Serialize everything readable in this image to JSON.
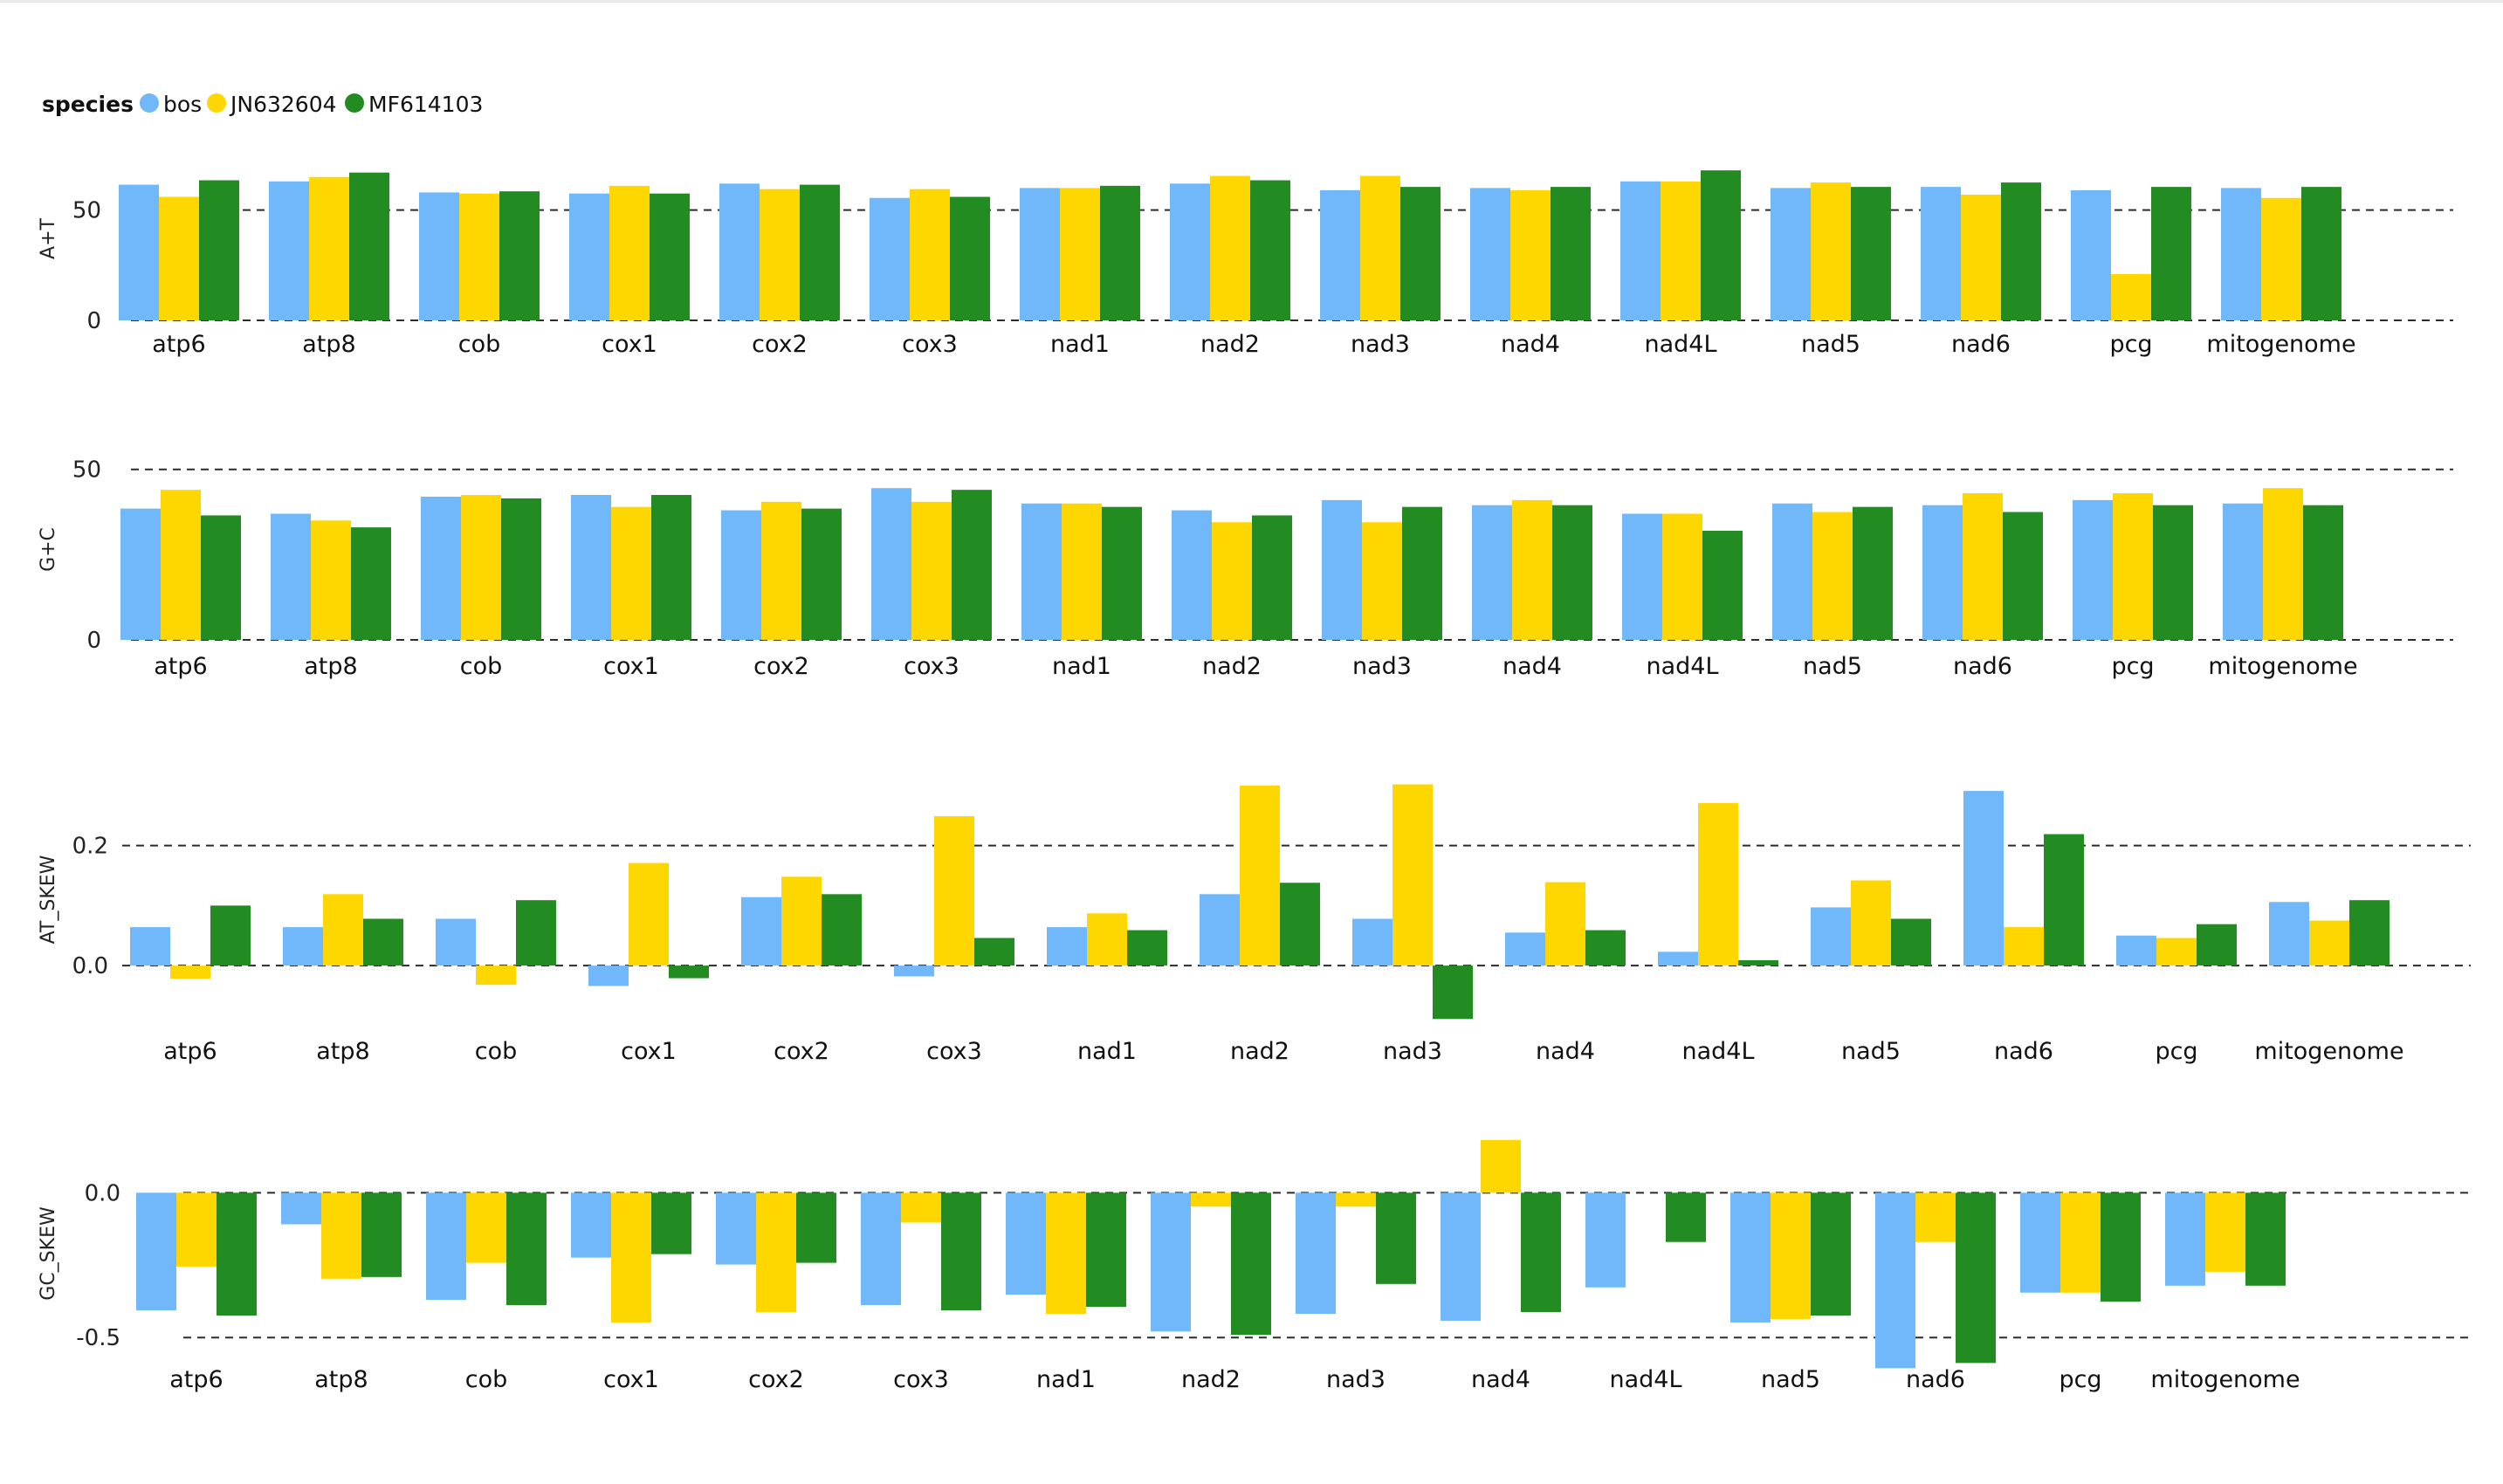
{
  "legend": {
    "title": "species",
    "items": [
      {
        "name": "bos",
        "color": "#70b8fa"
      },
      {
        "name": "JN632604",
        "color": "#ffd700"
      },
      {
        "name": "MF614103",
        "color": "#228b22"
      }
    ]
  },
  "chart_data": [
    {
      "type": "bar",
      "ylabel": "A+T",
      "categories": [
        "atp6",
        "atp8",
        "cob",
        "cox1",
        "cox2",
        "cox3",
        "nad1",
        "nad2",
        "nad3",
        "nad4",
        "nad4L",
        "nad5",
        "nad6",
        "pcg",
        "mitogenome"
      ],
      "yticks": [
        0,
        50
      ],
      "ytick_labels": [
        "0",
        "50"
      ],
      "ylim": [
        0,
        74
      ],
      "grid": "dashed at ticks",
      "series": [
        {
          "name": "bos",
          "values": [
            61.5,
            63.0,
            58.0,
            57.5,
            62.0,
            55.5,
            60.0,
            62.0,
            59.0,
            60.0,
            63.0,
            60.0,
            60.5,
            59.0,
            60.0
          ]
        },
        {
          "name": "JN632604",
          "values": [
            56.0,
            65.0,
            57.5,
            61.0,
            59.5,
            59.5,
            60.0,
            65.5,
            65.5,
            59.0,
            63.0,
            62.5,
            57.0,
            21.0,
            55.5
          ]
        },
        {
          "name": "MF614103",
          "values": [
            63.5,
            67.0,
            58.5,
            57.5,
            61.5,
            56.0,
            61.0,
            63.5,
            60.5,
            60.5,
            68.0,
            60.5,
            62.5,
            60.5,
            60.5
          ]
        }
      ]
    },
    {
      "type": "bar",
      "ylabel": "G+C",
      "categories": [
        "atp6",
        "atp8",
        "cob",
        "cox1",
        "cox2",
        "cox3",
        "nad1",
        "nad2",
        "nad3",
        "nad4",
        "nad4L",
        "nad5",
        "nad6",
        "pcg",
        "mitogenome"
      ],
      "yticks": [
        0,
        50
      ],
      "ytick_labels": [
        "0",
        "50"
      ],
      "ylim": [
        0,
        53
      ],
      "grid": "dashed at ticks",
      "series": [
        {
          "name": "bos",
          "values": [
            38.5,
            37.0,
            42.0,
            42.5,
            38.0,
            44.5,
            40.0,
            38.0,
            41.0,
            39.5,
            37.0,
            40.0,
            39.5,
            41.0,
            40.0
          ]
        },
        {
          "name": "JN632604",
          "values": [
            44.0,
            35.0,
            42.5,
            39.0,
            40.5,
            40.5,
            40.0,
            34.5,
            34.5,
            41.0,
            37.0,
            37.5,
            43.0,
            43.0,
            44.5
          ]
        },
        {
          "name": "MF614103",
          "values": [
            36.5,
            33.0,
            41.5,
            42.5,
            38.5,
            44.0,
            39.0,
            36.5,
            39.0,
            39.5,
            32.0,
            39.0,
            37.5,
            39.5,
            39.5
          ]
        }
      ]
    },
    {
      "type": "bar",
      "ylabel": "AT_SKEW",
      "categories": [
        "atp6",
        "atp8",
        "cob",
        "cox1",
        "cox2",
        "cox3",
        "nad1",
        "nad2",
        "nad3",
        "nad4",
        "nad4L",
        "nad5",
        "nad6",
        "pcg",
        "mitogenome"
      ],
      "yticks": [
        0.0,
        0.2
      ],
      "ytick_labels": [
        "0.0",
        "0.2"
      ],
      "ylim": [
        -0.09,
        0.31
      ],
      "grid": "dashed at ticks",
      "series": [
        {
          "name": "bos",
          "values": [
            0.064,
            0.064,
            0.078,
            -0.034,
            0.114,
            -0.018,
            0.064,
            0.119,
            0.078,
            0.055,
            0.023,
            0.097,
            0.291,
            0.05,
            0.106
          ]
        },
        {
          "name": "JN632604",
          "values": [
            -0.022,
            0.119,
            -0.032,
            0.171,
            0.148,
            0.249,
            0.087,
            0.3,
            0.302,
            0.139,
            0.271,
            0.142,
            0.064,
            0.046,
            0.075
          ]
        },
        {
          "name": "MF614103",
          "values": [
            0.1,
            0.078,
            0.109,
            -0.021,
            0.119,
            0.046,
            0.059,
            0.138,
            -0.089,
            0.059,
            0.009,
            0.078,
            0.219,
            0.069,
            0.109
          ]
        }
      ]
    },
    {
      "type": "bar",
      "ylabel": "GC_SKEW",
      "categories": [
        "atp6",
        "atp8",
        "cob",
        "cox1",
        "cox2",
        "cox3",
        "nad1",
        "nad2",
        "nad3",
        "nad4",
        "nad4L",
        "nad5",
        "nad6",
        "pcg",
        "mitogenome"
      ],
      "yticks": [
        -0.5,
        0.0
      ],
      "ytick_labels": [
        "-0.5",
        "0.0"
      ],
      "ylim": [
        -0.62,
        0.2
      ],
      "grid": "dashed at ticks",
      "series": [
        {
          "name": "bos",
          "values": [
            -0.406,
            -0.109,
            -0.37,
            -0.224,
            -0.248,
            -0.388,
            -0.352,
            -0.479,
            -0.418,
            -0.442,
            -0.327,
            -0.448,
            -0.606,
            -0.345,
            -0.321
          ]
        },
        {
          "name": "JN632604",
          "values": [
            -0.255,
            -0.297,
            -0.242,
            -0.448,
            -0.412,
            -0.103,
            -0.418,
            -0.048,
            -0.048,
            0.182,
            0.0,
            -0.436,
            -0.17,
            -0.345,
            -0.273
          ]
        },
        {
          "name": "MF614103",
          "values": [
            -0.424,
            -0.291,
            -0.388,
            -0.212,
            -0.242,
            -0.406,
            -0.394,
            -0.491,
            -0.315,
            -0.412,
            -0.17,
            -0.424,
            -0.588,
            -0.376,
            -0.321
          ]
        }
      ]
    }
  ]
}
